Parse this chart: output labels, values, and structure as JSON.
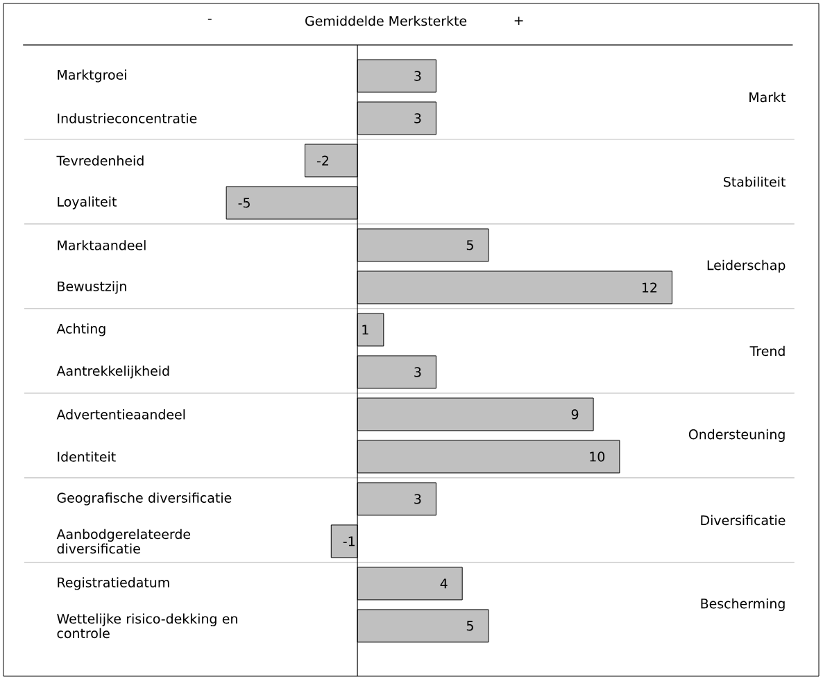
{
  "chart_data": {
    "type": "bar",
    "orientation": "horizontal",
    "title": "Gemiddelde Merksterkte",
    "categories": [
      "Marktgroei",
      "Industrieconcentratie",
      "Tevredenheid",
      "Loyaliteit",
      "Marktaandeel",
      "Bewustzijn",
      "Achting",
      "Aantrekkelijkheid",
      "Advertentieaandeel",
      "Identiteit",
      "Geografische diversificatie",
      "Aanbodgerelateerde diversificatie",
      "Registratiedatum",
      "Wettelijke risico-dekking en controle"
    ],
    "values": [
      3,
      3,
      -2,
      -5,
      5,
      12,
      1,
      3,
      9,
      10,
      3,
      -1,
      4,
      5
    ],
    "color": "#c0c0c0",
    "xlim": [
      -13.5,
      17.6
    ],
    "data_labels": true,
    "tick_labels": "y",
    "annotations": [
      "-",
      "+",
      "Markt",
      "Stabiliteit",
      "Leiderschap",
      "Trend",
      "Ondersteuning",
      "Diversificatie",
      "Bescherming"
    ]
  }
}
